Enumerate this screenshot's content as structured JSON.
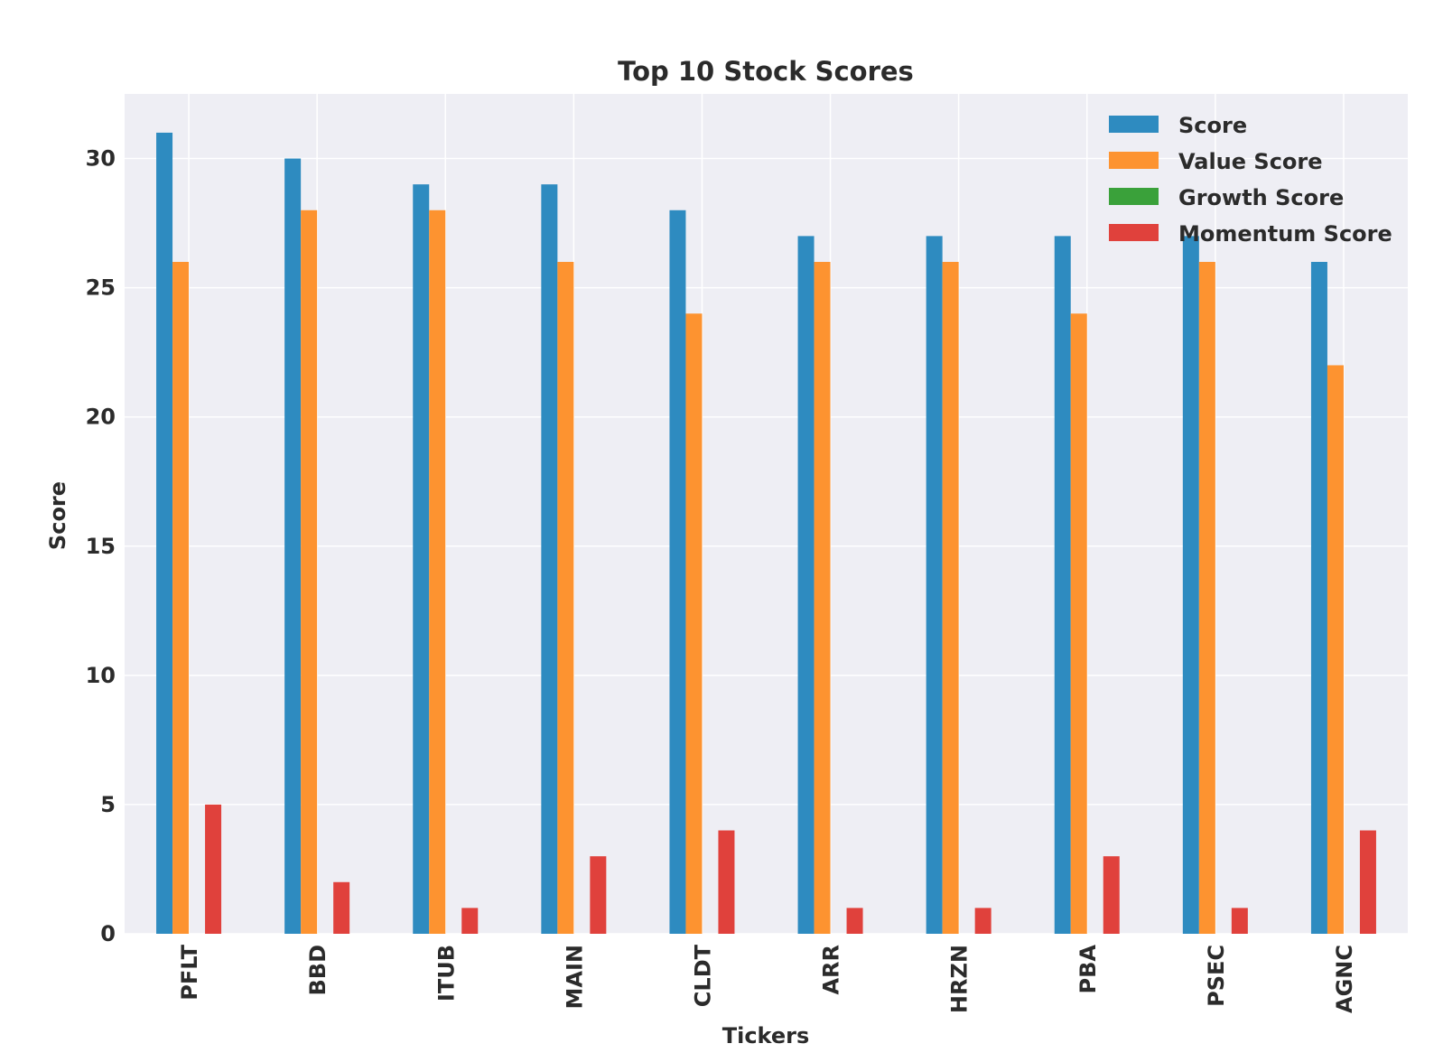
{
  "chart_data": {
    "type": "bar",
    "title": "Top 10 Stock Scores",
    "xlabel": "Tickers",
    "ylabel": "Score",
    "categories": [
      "PFLT",
      "BBD",
      "ITUB",
      "MAIN",
      "CLDT",
      "ARR",
      "HRZN",
      "PBA",
      "PSEC",
      "AGNC"
    ],
    "series": [
      {
        "name": "Score",
        "color": "#2e8bc0",
        "values": [
          31,
          30,
          29,
          29,
          28,
          27,
          27,
          27,
          27,
          26
        ]
      },
      {
        "name": "Value Score",
        "color": "#fd9330",
        "values": [
          26,
          28,
          28,
          26,
          24,
          26,
          26,
          24,
          26,
          22
        ]
      },
      {
        "name": "Growth Score",
        "color": "#3aa13a",
        "values": [
          0,
          0,
          0,
          0,
          0,
          0,
          0,
          0,
          0,
          0
        ]
      },
      {
        "name": "Momentum Score",
        "color": "#e0413c",
        "values": [
          5,
          2,
          1,
          3,
          4,
          1,
          1,
          3,
          1,
          4
        ]
      }
    ],
    "yticks": [
      0,
      5,
      10,
      15,
      20,
      25,
      30
    ],
    "ylim": [
      0,
      32.5
    ],
    "grid": true,
    "legend": "top-right",
    "plot_background": "#eeeef4"
  }
}
